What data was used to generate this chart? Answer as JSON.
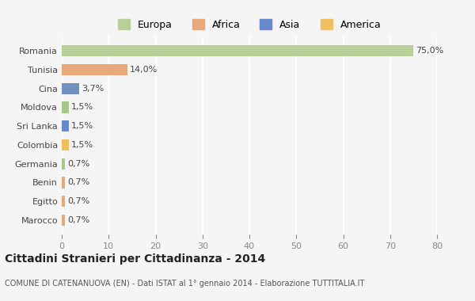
{
  "categories": [
    "Marocco",
    "Egitto",
    "Benin",
    "Germania",
    "Colombia",
    "Sri Lanka",
    "Moldova",
    "Cina",
    "Tunisia",
    "Romania"
  ],
  "values": [
    0.7,
    0.7,
    0.7,
    0.7,
    1.5,
    1.5,
    1.5,
    3.7,
    14.0,
    75.0
  ],
  "labels": [
    "0,7%",
    "0,7%",
    "0,7%",
    "0,7%",
    "1,5%",
    "1,5%",
    "1,5%",
    "3,7%",
    "14,0%",
    "75,0%"
  ],
  "colors": [
    "#e8a87c",
    "#e8a87c",
    "#e8a87c",
    "#a8c88a",
    "#f0c060",
    "#6688cc",
    "#a8c88a",
    "#7090c0",
    "#e8a87c",
    "#b8d098"
  ],
  "legend": [
    {
      "label": "Europa",
      "color": "#b8d098"
    },
    {
      "label": "Africa",
      "color": "#e8a87c"
    },
    {
      "label": "Asia",
      "color": "#6688cc"
    },
    {
      "label": "America",
      "color": "#f0c060"
    }
  ],
  "title": "Cittadini Stranieri per Cittadinanza - 2014",
  "subtitle": "COMUNE DI CATENANUOVA (EN) - Dati ISTAT al 1° gennaio 2014 - Elaborazione TUTTITALIA.IT",
  "xlim": [
    0,
    80
  ],
  "xticks": [
    0,
    10,
    20,
    30,
    40,
    50,
    60,
    70,
    80
  ],
  "bg_color": "#f5f5f5",
  "grid_color": "#ffffff"
}
